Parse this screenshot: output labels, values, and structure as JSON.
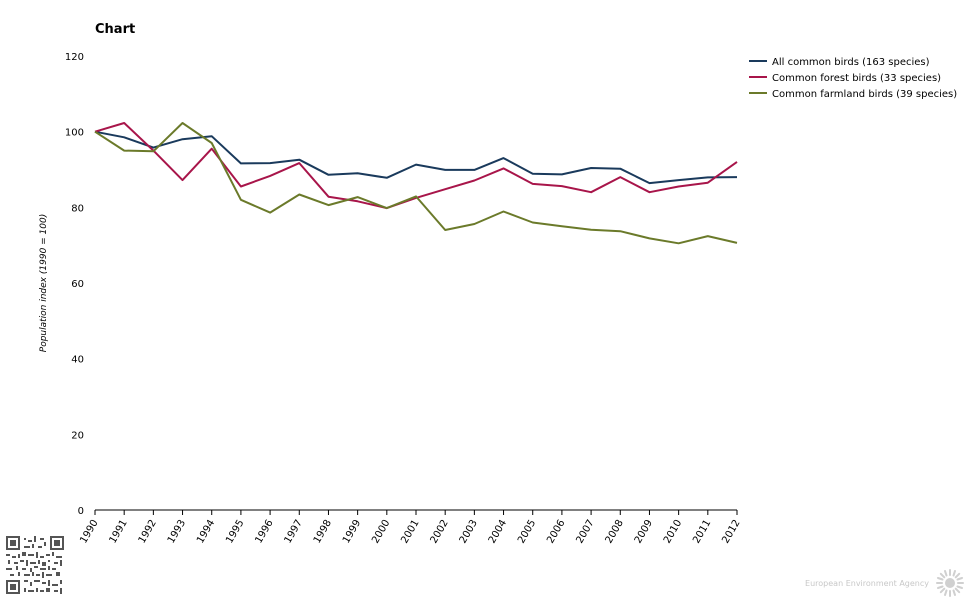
{
  "chart_data": {
    "type": "line",
    "title": "Chart",
    "ylabel": "Population index (1990 = 100)",
    "xlabel": "",
    "ylim": [
      0,
      120
    ],
    "yticks": [
      0,
      20,
      40,
      60,
      80,
      100,
      120
    ],
    "grid": false,
    "legend_position": "top-right",
    "categories": [
      "1990",
      "1991",
      "1992",
      "1993",
      "1994",
      "1995",
      "1996",
      "1997",
      "1998",
      "1999",
      "2000",
      "2001",
      "2002",
      "2003",
      "2004",
      "2005",
      "2006",
      "2007",
      "2008",
      "2009",
      "2010",
      "2011",
      "2012"
    ],
    "series": [
      {
        "name": "All common birds (163 species)",
        "color": "#1a3a5c",
        "values": [
          100,
          98.5,
          95.8,
          98,
          98.8,
          91.6,
          91.7,
          92.6,
          88.6,
          89,
          87.8,
          91.3,
          89.9,
          89.9,
          93,
          88.9,
          88.7,
          90.4,
          90.2,
          86.4,
          87.2,
          87.9,
          88
        ]
      },
      {
        "name": "Common forest birds (33 species)",
        "color": "#a8154a",
        "values": [
          100,
          102.3,
          95,
          87.2,
          95.5,
          85.5,
          88.3,
          91.7,
          82.8,
          81.6,
          79.8,
          82.5,
          84.8,
          87.1,
          90.3,
          86.2,
          85.6,
          84,
          88,
          84,
          85.5,
          86.5,
          92
        ]
      },
      {
        "name": "Common farmland birds (39 species)",
        "color": "#6b7a2a",
        "values": [
          100,
          95,
          94.8,
          102.3,
          97,
          82,
          78.6,
          83.4,
          80.6,
          82.7,
          79.8,
          82.9,
          74,
          75.6,
          78.9,
          76,
          75,
          74.1,
          73.7,
          71.8,
          70.5,
          72.4,
          70.6
        ]
      }
    ]
  },
  "footer": {
    "agency": "European Environment Agency",
    "qr_icon": "qr-code-icon",
    "logo_icon": "eea-sun-logo-icon"
  }
}
